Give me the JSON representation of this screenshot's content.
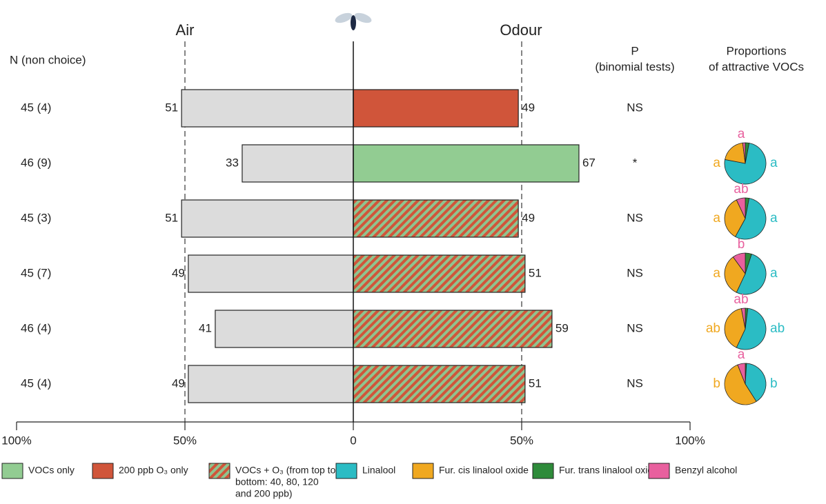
{
  "chart_data": {
    "type": "bar",
    "air_label": "Air",
    "odour_label": "Odour",
    "n_header": "N (non choice)",
    "p_header": [
      "P",
      "(binomial tests)"
    ],
    "pie_header": [
      "Proportions",
      "of attractive VOCs"
    ],
    "categories": [
      "45 (4)",
      "46 (9)",
      "45 (3)",
      "45 (7)",
      "46 (4)",
      "45 (4)"
    ],
    "series": [
      {
        "name": "Air",
        "side": "left",
        "color": "#dcdcdc",
        "values": [
          51,
          33,
          51,
          49,
          41,
          49
        ]
      },
      {
        "name": "Odour",
        "side": "right",
        "colors": [
          "#d0553a",
          "#92cc92",
          "hatch",
          "hatch",
          "hatch",
          "hatch"
        ],
        "values": [
          49,
          67,
          49,
          51,
          59,
          51
        ]
      }
    ],
    "p_values": [
      "NS",
      "*",
      "NS",
      "NS",
      "NS",
      "NS"
    ],
    "xlim": [
      -100,
      100
    ],
    "xticks": [
      {
        "value": -100,
        "label": "100%"
      },
      {
        "value": -50,
        "label": "50%"
      },
      0,
      {
        "value": 50,
        "label": "50%"
      },
      {
        "value": 100,
        "label": "100%"
      }
    ],
    "reference_lines": [
      -50,
      50
    ],
    "pie_series": [
      {
        "name": "Fur. trans linalool oxide",
        "color": "#2e8b3a"
      },
      {
        "name": "Linalool",
        "color": "#2bbcc4"
      },
      {
        "name": "Fur. cis linalool oxide",
        "color": "#f0a820"
      },
      {
        "name": "Benzyl alcohol",
        "color": "#e8609e"
      }
    ],
    "pies": [
      null,
      {
        "values": [
          3,
          75,
          20,
          2
        ],
        "letters": [
          null,
          "a",
          "a",
          "a"
        ]
      },
      {
        "values": [
          3,
          55,
          35,
          7
        ],
        "letters": [
          null,
          "a",
          "a",
          "ab"
        ]
      },
      {
        "values": [
          5,
          52,
          33,
          10
        ],
        "letters": [
          null,
          "a",
          "a",
          "b"
        ]
      },
      {
        "values": [
          2,
          55,
          40,
          3
        ],
        "letters": [
          null,
          "ab",
          "ab",
          "ab"
        ]
      },
      {
        "values": [
          1,
          40,
          53,
          6
        ],
        "letters": [
          null,
          "b",
          "b",
          "a"
        ]
      }
    ],
    "legend": [
      {
        "lines": [
          "VOCs only"
        ],
        "color": "#92cc92"
      },
      {
        "lines": [
          "200 ppb O₃ only"
        ],
        "color": "#d0553a"
      },
      {
        "lines": [
          "VOCs + O₃ (from top to",
          "bottom: 40, 80, 120",
          "and 200 ppb)"
        ],
        "color": "hatch"
      },
      {
        "lines": [
          "Linalool"
        ],
        "color": "#2bbcc4"
      },
      {
        "lines": [
          "Fur. cis linalool oxide"
        ],
        "color": "#f0a820"
      },
      {
        "lines": [
          "Fur. trans linalool oxide"
        ],
        "color": "#2e8b3a"
      },
      {
        "lines": [
          "Benzyl alcohol"
        ],
        "color": "#e8609e"
      }
    ]
  }
}
